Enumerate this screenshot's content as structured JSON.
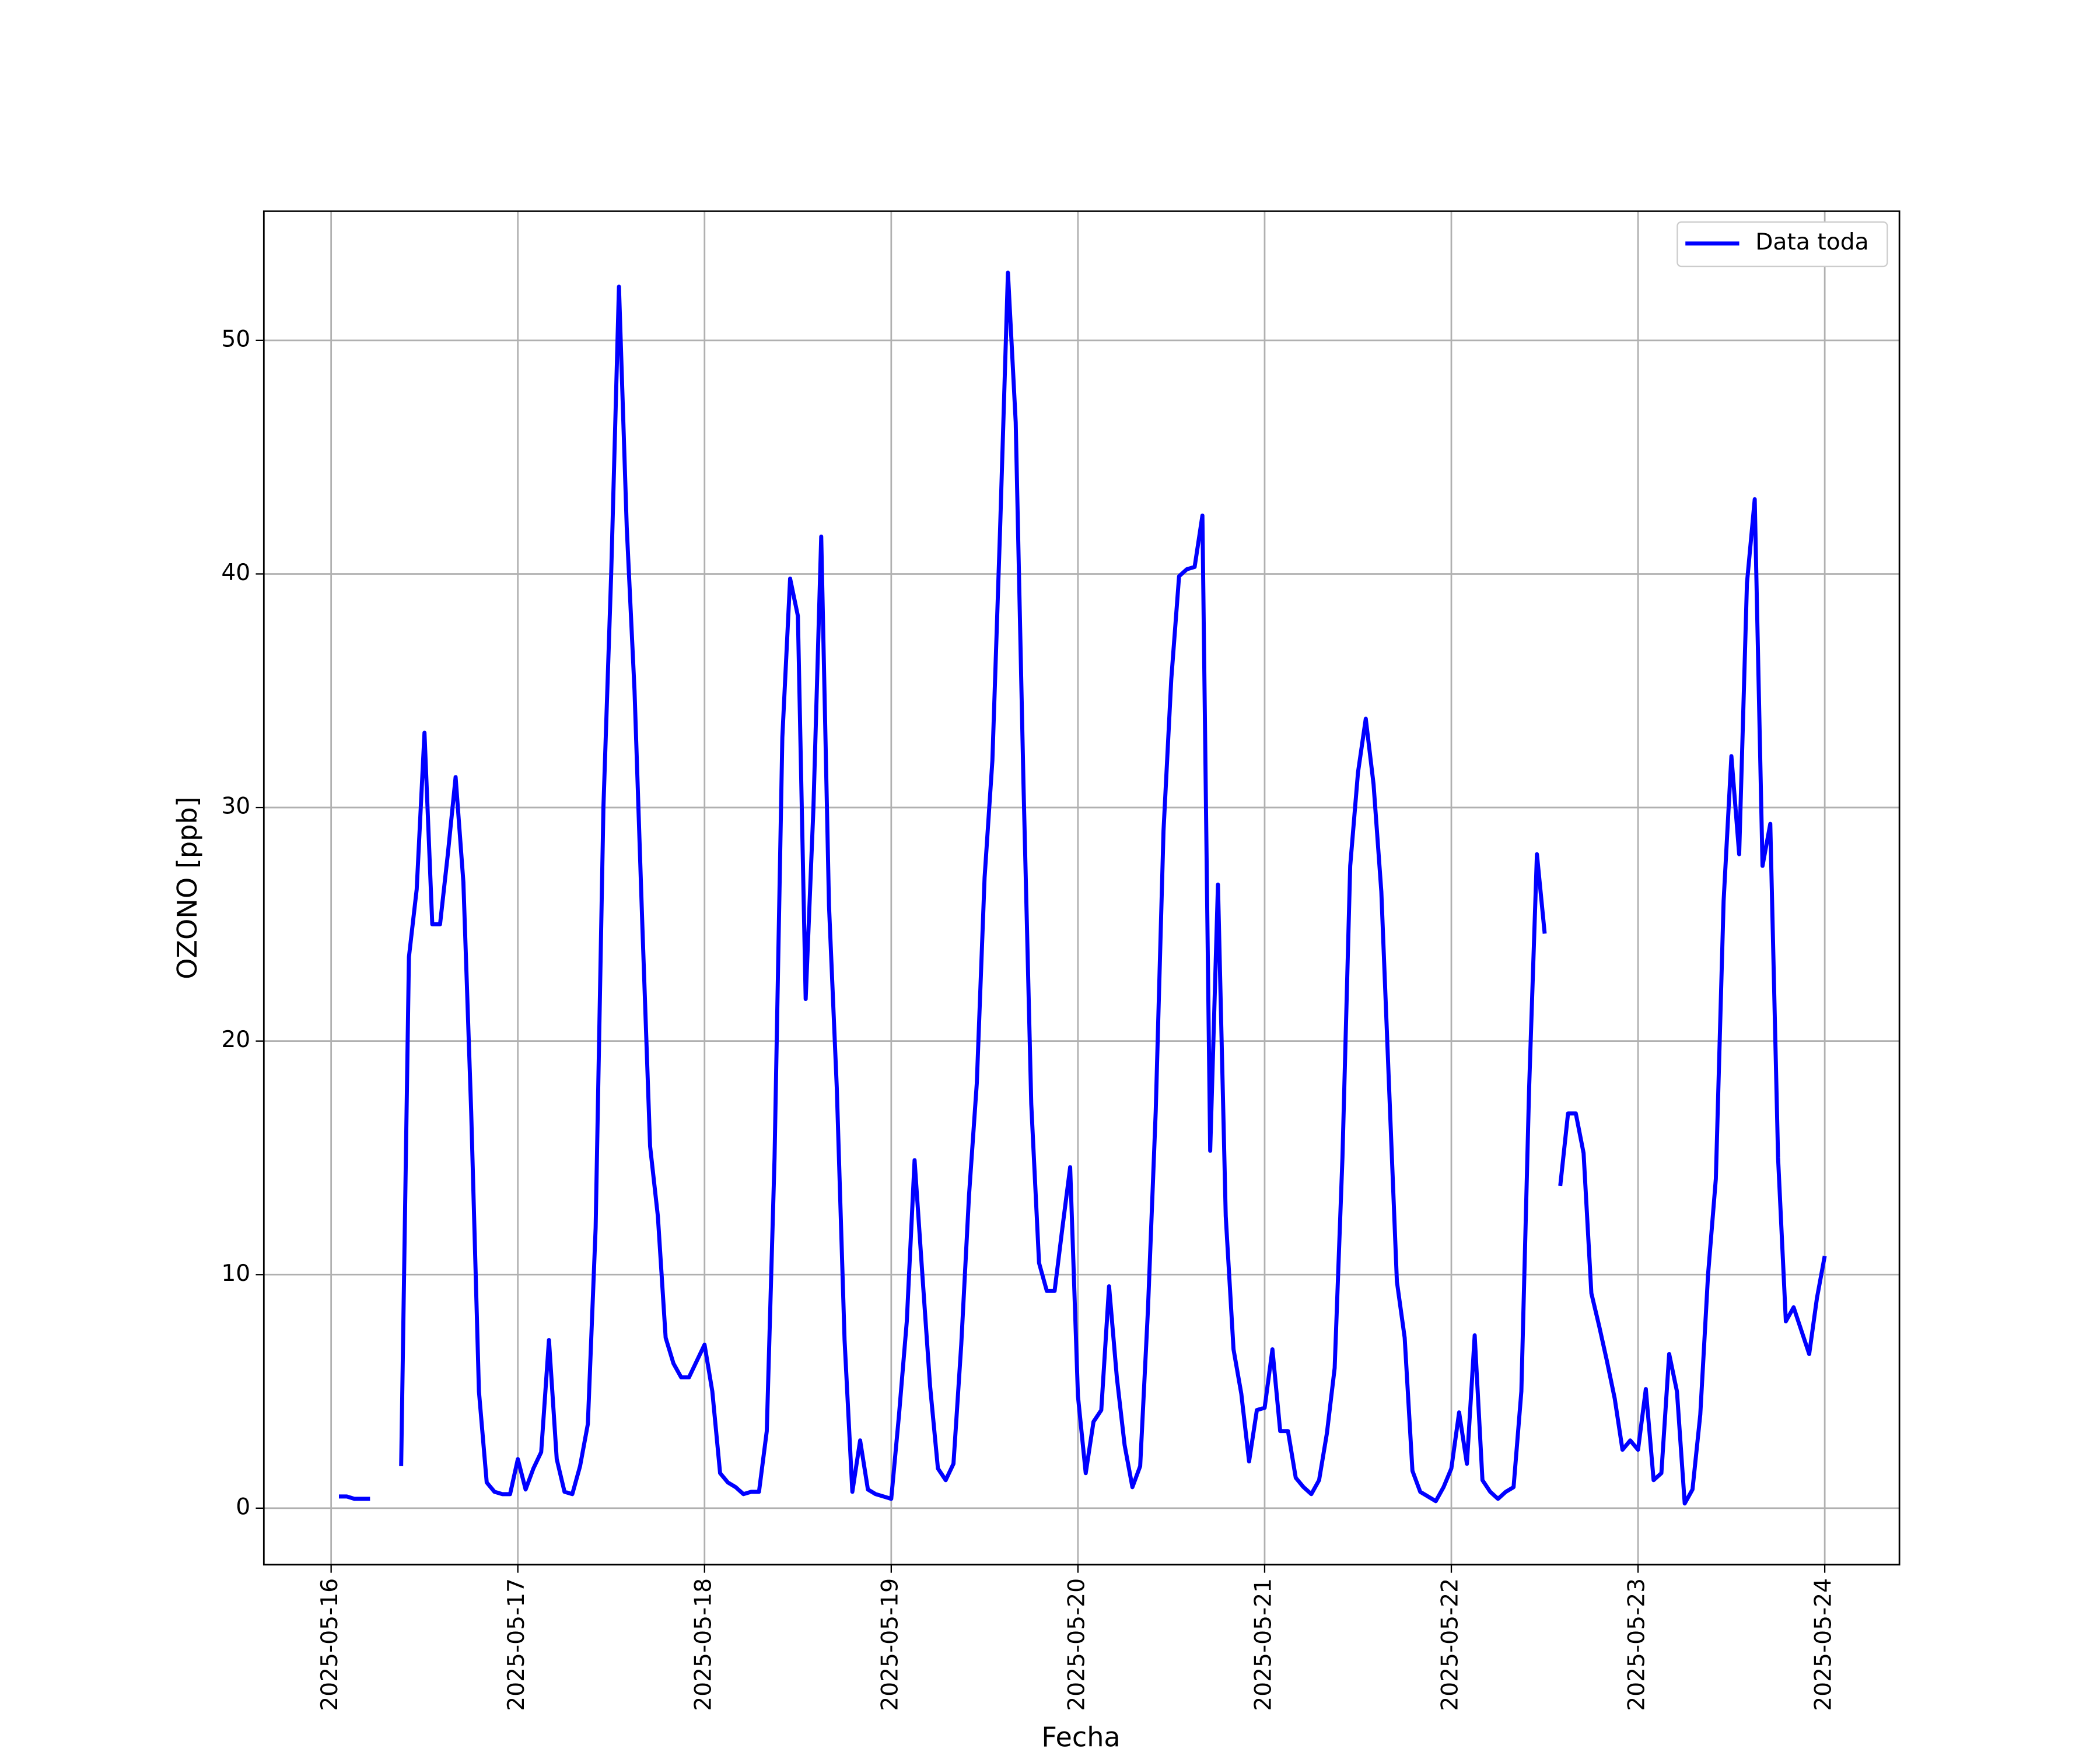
{
  "chart_data": {
    "type": "line",
    "xlabel": "Fecha",
    "ylabel": "OZONO [ppb]",
    "x": [
      1,
      2,
      3,
      4,
      5,
      6,
      7,
      8,
      9,
      10,
      11,
      12,
      13,
      14,
      15,
      16,
      17,
      18,
      19,
      20,
      21,
      22,
      23,
      24,
      25,
      26,
      27,
      28,
      29,
      30,
      31,
      32,
      33,
      34,
      35,
      36,
      37,
      38,
      39,
      40,
      41,
      42,
      43,
      44,
      45,
      46,
      47,
      48,
      49,
      50,
      51,
      52,
      53,
      54,
      55,
      56,
      57,
      58,
      59,
      60,
      61,
      62,
      63,
      64,
      65,
      66,
      67,
      68,
      69,
      70,
      71,
      72,
      73,
      74,
      75,
      76,
      77,
      78,
      79,
      80,
      81,
      82,
      83,
      84,
      85,
      86,
      87,
      88,
      89,
      90,
      91,
      92,
      93,
      94,
      95,
      96,
      97,
      98,
      99,
      100,
      101,
      102,
      103,
      104,
      105,
      106,
      107,
      108,
      109,
      110,
      111,
      112,
      113,
      114,
      115,
      116,
      117,
      118,
      119,
      120,
      121,
      122,
      123,
      124,
      125,
      126,
      127,
      128,
      129,
      130,
      131,
      132,
      133,
      134,
      135,
      136,
      137,
      138,
      139,
      140,
      141,
      142,
      143,
      144,
      145,
      146,
      147,
      148,
      149,
      150,
      151,
      152,
      153,
      154,
      155,
      156,
      157,
      158,
      159,
      160,
      161,
      162,
      163,
      164,
      165,
      166,
      167,
      168,
      169,
      170,
      171,
      172,
      173,
      174,
      175,
      176,
      177,
      178,
      179,
      180,
      181,
      182,
      183,
      184,
      185,
      186,
      187,
      188,
      189,
      190,
      191,
      192
    ],
    "series": [
      {
        "name": "Data toda",
        "color": "#0000ff",
        "values": [
          0.5,
          0.5,
          0.4,
          0.4,
          0.4,
          null,
          null,
          null,
          1.8,
          23.6,
          26.5,
          33.2,
          25,
          25,
          28,
          31.3,
          26.8,
          17,
          5,
          1.1,
          0.7,
          0.6,
          0.6,
          2.1,
          0.8,
          1.7,
          2.4,
          7.2,
          2.1,
          0.7,
          0.6,
          1.8,
          3.6,
          12,
          30,
          40,
          52.3,
          42,
          35,
          25,
          15.5,
          12.5,
          7.3,
          6.2,
          5.6,
          5.6,
          6.3,
          7,
          5,
          1.5,
          1.1,
          0.9,
          0.6,
          0.7,
          0.7,
          3.3,
          15,
          33,
          39.8,
          38.2,
          21.8,
          30,
          41.6,
          25.8,
          18,
          7.2,
          0.7,
          2.9,
          0.8,
          0.6,
          0.5,
          0.4,
          4,
          8,
          14.9,
          10,
          5.2,
          1.7,
          1.2,
          1.9,
          7,
          13.4,
          18.2,
          27,
          32,
          42,
          52.9,
          46.5,
          31,
          17.3,
          10.5,
          9.3,
          9.3,
          12,
          14.6,
          4.8,
          1.5,
          3.7,
          4.2,
          9.5,
          5.6,
          2.7,
          0.9,
          1.8,
          8.5,
          17,
          29,
          35.5,
          39.9,
          40.2,
          40.3,
          42.5,
          15.3,
          26.7,
          12.5,
          6.8,
          4.9,
          2,
          4.2,
          4.3,
          6.8,
          3.3,
          3.3,
          1.3,
          0.9,
          0.6,
          1.2,
          3.2,
          6,
          15,
          27.5,
          31.5,
          33.8,
          31,
          26.4,
          18,
          9.7,
          7.3,
          1.6,
          0.7,
          0.5,
          0.3,
          0.9,
          1.7,
          4.1,
          1.9,
          7.4,
          1.2,
          0.7,
          0.4,
          0.7,
          0.9,
          5,
          18,
          28,
          24.6,
          null,
          13.8,
          16.9,
          16.9,
          15.2,
          9.2,
          7.8,
          6.3,
          4.7,
          2.5,
          2.9,
          2.5,
          5.1,
          1.2,
          1.5,
          6.6,
          5,
          0.2,
          0.8,
          4,
          10,
          14.1,
          26,
          32.2,
          28,
          39.6,
          43.2,
          27.5,
          29.3,
          15,
          8,
          8.6,
          7.6,
          6.6,
          9,
          10.8
        ]
      }
    ],
    "xlim": [
      -8.65,
      201.6
    ],
    "xticks": [
      {
        "value": 0,
        "label": "2025-05-16"
      },
      {
        "value": 24,
        "label": "2025-05-17"
      },
      {
        "value": 48,
        "label": "2025-05-18"
      },
      {
        "value": 72,
        "label": "2025-05-19"
      },
      {
        "value": 96,
        "label": "2025-05-20"
      },
      {
        "value": 120,
        "label": "2025-05-21"
      },
      {
        "value": 144,
        "label": "2025-05-22"
      },
      {
        "value": 168,
        "label": "2025-05-23"
      },
      {
        "value": 192,
        "label": "2025-05-24"
      }
    ],
    "ylim": [
      -2.42,
      55.53
    ],
    "yticks": [
      0,
      10,
      20,
      30,
      40,
      50
    ],
    "grid": true,
    "legend": "upper right"
  }
}
